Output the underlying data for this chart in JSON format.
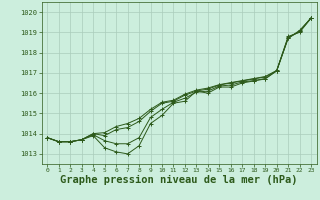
{
  "bg_color": "#cceedd",
  "grid_color": "#aaccbb",
  "line_color": "#2d5a1b",
  "title": "Graphe pression niveau de la mer (hPa)",
  "title_fontsize": 7.5,
  "ylim": [
    1012.5,
    1020.5
  ],
  "xlim": [
    -0.5,
    23.5
  ],
  "yticks": [
    1013,
    1014,
    1015,
    1016,
    1017,
    1018,
    1019,
    1020
  ],
  "xticks": [
    0,
    1,
    2,
    3,
    4,
    5,
    6,
    7,
    8,
    9,
    10,
    11,
    12,
    13,
    14,
    15,
    16,
    17,
    18,
    19,
    20,
    21,
    22,
    23
  ],
  "series": [
    [
      1013.8,
      1013.6,
      1013.6,
      1013.7,
      1013.9,
      1013.3,
      1013.1,
      1013.0,
      1013.4,
      1014.5,
      1014.9,
      1015.5,
      1015.6,
      1016.1,
      1016.0,
      1016.3,
      1016.3,
      1016.5,
      1016.6,
      1016.7,
      1017.1,
      1018.8,
      1019.0,
      1019.7
    ],
    [
      1013.8,
      1013.6,
      1013.6,
      1013.7,
      1013.95,
      1013.65,
      1013.5,
      1013.5,
      1013.8,
      1014.8,
      1015.2,
      1015.55,
      1015.75,
      1016.05,
      1016.1,
      1016.35,
      1016.4,
      1016.55,
      1016.62,
      1016.72,
      1017.1,
      1018.75,
      1019.05,
      1019.72
    ],
    [
      1013.8,
      1013.6,
      1013.6,
      1013.7,
      1014.0,
      1013.9,
      1014.2,
      1014.3,
      1014.6,
      1015.1,
      1015.5,
      1015.6,
      1015.9,
      1016.1,
      1016.2,
      1016.4,
      1016.5,
      1016.6,
      1016.7,
      1016.8,
      1017.1,
      1018.7,
      1019.1,
      1019.7
    ],
    [
      1013.8,
      1013.6,
      1013.6,
      1013.7,
      1014.0,
      1014.05,
      1014.35,
      1014.5,
      1014.75,
      1015.2,
      1015.55,
      1015.65,
      1015.95,
      1016.15,
      1016.25,
      1016.42,
      1016.52,
      1016.62,
      1016.72,
      1016.82,
      1017.12,
      1018.72,
      1019.05,
      1019.72
    ]
  ]
}
